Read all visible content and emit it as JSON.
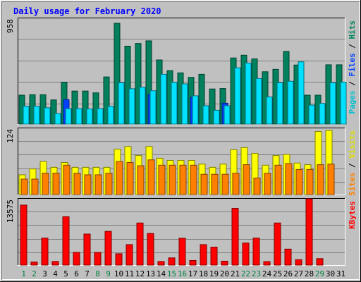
{
  "chart_data": [
    {
      "type": "bar",
      "title": "Daily usage for February 2020",
      "ylabel": "Pages / Files / Hits",
      "ymax_label": "958",
      "ylim": [
        0,
        958
      ],
      "series": [
        {
          "name": "Hits",
          "color": "#00805c",
          "values": [
            262,
            266,
            266,
            219,
            380,
            299,
            299,
            283,
            427,
            913,
            706,
            730,
            754,
            581,
            484,
            464,
            423,
            451,
            318,
            322,
            599,
            624,
            591,
            474,
            496,
            658,
            535,
            262,
            262,
            537,
            537
          ]
        },
        {
          "name": "Files",
          "color": "#0040ff",
          "values": [
            0,
            0,
            0,
            0,
            222,
            0,
            0,
            0,
            0,
            0,
            0,
            0,
            268,
            0,
            0,
            0,
            243,
            0,
            0,
            189,
            0,
            0,
            0,
            0,
            0,
            0,
            0,
            0,
            0,
            0,
            0
          ]
        },
        {
          "name": "Pages",
          "color": "#00e0ff",
          "values": [
            161,
            161,
            148,
            96,
            140,
            140,
            137,
            140,
            161,
            374,
            320,
            334,
            302,
            451,
            378,
            364,
            256,
            166,
            125,
            166,
            510,
            553,
            413,
            246,
            374,
            388,
            564,
            172,
            187,
            374,
            380
          ]
        }
      ]
    },
    {
      "type": "bar",
      "ylabel": "Sites / Visits",
      "ymax_label": "124",
      "ylim": [
        0,
        124
      ],
      "series": [
        {
          "name": "Visits",
          "color": "#ffff00",
          "values": [
            37,
            48,
            62,
            51,
            60,
            51,
            51,
            51,
            51,
            85,
            90,
            73,
            90,
            68,
            64,
            64,
            64,
            57,
            51,
            57,
            84,
            88,
            77,
            55,
            73,
            75,
            59,
            56,
            118,
            120,
            0
          ]
        },
        {
          "name": "Sites",
          "color": "#ff8000",
          "values": [
            29,
            29,
            40,
            40,
            55,
            40,
            37,
            37,
            40,
            62,
            60,
            54,
            65,
            55,
            55,
            55,
            55,
            38,
            38,
            38,
            40,
            56,
            31,
            40,
            55,
            58,
            47,
            47,
            56,
            57,
            0
          ]
        }
      ]
    },
    {
      "type": "bar",
      "ylabel": "KBytes",
      "ymax_label": "13575",
      "ylim": [
        0,
        13575
      ],
      "series": [
        {
          "name": "KBytes",
          "color": "#ff0000",
          "values": [
            12287,
            619,
            5524,
            737,
            9915,
            2602,
            6357,
            2602,
            6913,
            2324,
            4197,
            8624,
            6475,
            737,
            1476,
            5492,
            947,
            4197,
            3681,
            805,
            11621,
            4516,
            5524,
            719,
            8624,
            3276,
            1105,
            13575,
            1329,
            0,
            0
          ]
        }
      ]
    }
  ],
  "x_labels": [
    "1",
    "2",
    "3",
    "4",
    "5",
    "6",
    "7",
    "8",
    "9",
    "10",
    "11",
    "12",
    "13",
    "14",
    "15",
    "16",
    "17",
    "18",
    "19",
    "20",
    "21",
    "22",
    "23",
    "24",
    "25",
    "26",
    "27",
    "28",
    "29",
    "30",
    "31"
  ],
  "weekend_days": [
    1,
    2,
    8,
    9,
    15,
    16,
    22,
    23,
    29
  ],
  "colors": {
    "weekday_label": "#000000",
    "weekend_label": "#008040",
    "title": "#0000ff",
    "plot_bg": "#c0c0c0",
    "grid": "#808080"
  }
}
